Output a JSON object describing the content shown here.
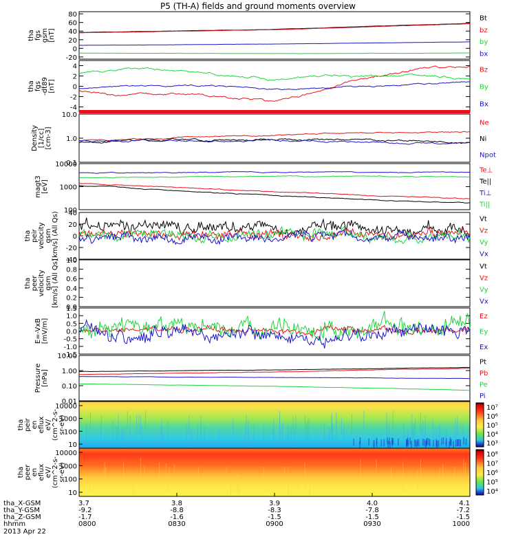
{
  "title": "P5 (TH-A) fields and ground moments overview",
  "date_label": "2013 Apr 22",
  "colors": {
    "black": "#000000",
    "red": "#e8101a",
    "green": "#1fd43c",
    "blue": "#1a14c8",
    "frame": "#000000"
  },
  "chart_data": [
    {
      "type": "line",
      "panel": "fgs",
      "ylabel": [
        "tha",
        "fgs",
        "gsm",
        "[nT]"
      ],
      "yticks": [
        "80",
        "60",
        "40",
        "20",
        "0",
        "-20"
      ],
      "ylim": [
        -25,
        85
      ],
      "legend": [
        "Bt",
        "bz",
        "by",
        "bx"
      ],
      "series": [
        {
          "name": "Bt",
          "color": "black",
          "x": [
            0,
            0.5,
            1
          ],
          "values": [
            37,
            44,
            58
          ]
        },
        {
          "name": "bz",
          "color": "red",
          "x": [
            0,
            0.5,
            1
          ],
          "values": [
            36,
            43,
            57
          ]
        },
        {
          "name": "by",
          "color": "blue",
          "x": [
            0,
            0.5,
            1
          ],
          "values": [
            7,
            10,
            15
          ]
        },
        {
          "name": "bx",
          "color": "green",
          "x": [
            0,
            0.5,
            1
          ],
          "values": [
            -11,
            -12,
            -11
          ]
        }
      ]
    },
    {
      "type": "line",
      "panel": "fgs_dt89",
      "ylabel": [
        "tha",
        "fgs",
        "-dt89",
        "[nT]"
      ],
      "yticks": [
        "4",
        "2",
        "0",
        "-2",
        "-4"
      ],
      "ylim": [
        -5,
        5
      ],
      "legend": [
        "Bz",
        "By",
        "Bx"
      ],
      "series": [
        {
          "name": "Bz",
          "color": "red",
          "x": [
            0,
            0.12,
            0.25,
            0.38,
            0.5,
            0.62,
            0.75,
            0.88,
            1
          ],
          "values": [
            -1,
            -2,
            -1.5,
            -2,
            -3,
            -1,
            2,
            3.5,
            4
          ]
        },
        {
          "name": "By",
          "color": "green",
          "x": [
            0,
            0.12,
            0.25,
            0.38,
            0.5,
            0.62,
            0.75,
            0.88,
            1
          ],
          "values": [
            2.5,
            3.5,
            3,
            2,
            1.5,
            2,
            2,
            2,
            1.5
          ]
        },
        {
          "name": "Bx",
          "color": "blue",
          "x": [
            0,
            0.12,
            0.25,
            0.38,
            0.5,
            0.62,
            0.75,
            0.88,
            1
          ],
          "values": [
            -0.5,
            0,
            0.2,
            0,
            -0.5,
            -0.3,
            0,
            0.5,
            1
          ]
        }
      ]
    },
    {
      "type": "line",
      "panel": "density",
      "log": true,
      "ylabel": [
        "Density",
        "[1/cc]",
        "[cm-3]"
      ],
      "yticks": [
        "10.0",
        "1.0",
        "0.1"
      ],
      "ylim": [
        0.1,
        10
      ],
      "legend": [
        "Ne",
        "Ni",
        "Npot"
      ],
      "series": [
        {
          "name": "Ne",
          "color": "red",
          "x": [
            0,
            0.5,
            1
          ],
          "values": [
            0.8,
            1.3,
            1.9
          ]
        },
        {
          "name": "Ni",
          "color": "black",
          "x": [
            0,
            0.5,
            1
          ],
          "values": [
            0.7,
            0.9,
            0.7
          ]
        },
        {
          "name": "Npot",
          "color": "blue",
          "x": [
            0,
            0.5,
            1
          ],
          "values": [
            0.8,
            0.8,
            0.6
          ]
        }
      ]
    },
    {
      "type": "line",
      "panel": "temperature",
      "log": true,
      "ylabel": [
        "magt3",
        "[eV]"
      ],
      "yticks": [
        "10000",
        "1000",
        "100"
      ],
      "ylim": [
        100,
        10000
      ],
      "legend": [
        "Te⊥",
        "Te||",
        "Ti⊥",
        "Ti||"
      ],
      "series": [
        {
          "name": "Ti⊥",
          "color": "blue",
          "x": [
            0,
            0.5,
            1
          ],
          "values": [
            4000,
            4300,
            4200
          ]
        },
        {
          "name": "Ti||",
          "color": "green",
          "x": [
            0,
            0.5,
            1
          ],
          "values": [
            2500,
            2800,
            2700
          ]
        },
        {
          "name": "Te⊥",
          "color": "red",
          "x": [
            0,
            0.25,
            0.5,
            0.75,
            1
          ],
          "values": [
            1400,
            900,
            600,
            400,
            300
          ]
        },
        {
          "name": "Te||",
          "color": "black",
          "x": [
            0,
            0.25,
            0.5,
            0.75,
            1
          ],
          "values": [
            1100,
            650,
            400,
            260,
            190
          ]
        }
      ]
    },
    {
      "type": "line",
      "panel": "peir_velocity",
      "ylabel": [
        "tha",
        "peir",
        "velocity",
        "gsm",
        "[km/s] (All Qs)"
      ],
      "yticks": [
        "40",
        "20",
        "0",
        "-20",
        "-40"
      ],
      "ylim": [
        -40,
        40
      ],
      "legend": [
        "Vt",
        "Vz",
        "Vy",
        "Vx"
      ],
      "series": [
        {
          "name": "Vt",
          "color": "black",
          "x": [
            0,
            1
          ],
          "values": [
            15,
            15
          ]
        },
        {
          "name": "Vz",
          "color": "red",
          "x": [
            0,
            1
          ],
          "values": [
            2,
            2
          ]
        },
        {
          "name": "Vy",
          "color": "green",
          "x": [
            0,
            1
          ],
          "values": [
            0,
            0
          ]
        },
        {
          "name": "Vx",
          "color": "blue",
          "x": [
            0,
            1
          ],
          "values": [
            -3,
            -3
          ]
        }
      ]
    },
    {
      "type": "line",
      "panel": "peer_velocity",
      "ylabel": [
        "tha",
        "peer",
        "velocity",
        "gsm",
        "[km/s] (All Qs)"
      ],
      "yticks": [
        "1.0",
        "0.8",
        "0.6",
        "0.4",
        "0.2",
        "0.0"
      ],
      "ylim": [
        0,
        1
      ],
      "legend": [
        "Vt",
        "Vz",
        "Vy",
        "Vx"
      ],
      "series": []
    },
    {
      "type": "line",
      "panel": "efield",
      "ylabel": [
        "E=-VxB",
        "[mV/m]"
      ],
      "yticks": [
        "1.5",
        "1.0",
        "0.5",
        "0.0",
        "-0.5",
        "-1.0",
        "-1.5"
      ],
      "ylim": [
        -1.5,
        1.5
      ],
      "legend": [
        "Ez",
        "Ey",
        "Ex"
      ],
      "series": [
        {
          "name": "Ez",
          "color": "red",
          "x": [
            0,
            1
          ],
          "values": [
            0.05,
            0.05
          ]
        },
        {
          "name": "Ey",
          "color": "green",
          "x": [
            0,
            1
          ],
          "values": [
            0.2,
            0.2
          ]
        },
        {
          "name": "Ex",
          "color": "blue",
          "x": [
            0,
            1
          ],
          "values": [
            -0.1,
            -0.1
          ]
        }
      ]
    },
    {
      "type": "line",
      "panel": "pressure",
      "log": true,
      "ylabel": [
        "Pressure",
        "[nPa]"
      ],
      "yticks": [
        "10.00",
        "1.00",
        "0.10",
        "0.01"
      ],
      "ylim": [
        0.01,
        10
      ],
      "legend": [
        "Pt",
        "Pb",
        "Pe",
        "Pi"
      ],
      "series": [
        {
          "name": "Pt",
          "color": "black",
          "x": [
            0,
            0.5,
            1
          ],
          "values": [
            0.85,
            1.1,
            1.6
          ]
        },
        {
          "name": "Pb",
          "color": "red",
          "x": [
            0,
            0.5,
            1
          ],
          "values": [
            0.55,
            0.8,
            1.4
          ]
        },
        {
          "name": "Pi",
          "color": "blue",
          "x": [
            0,
            0.5,
            1
          ],
          "values": [
            0.4,
            0.35,
            0.3
          ]
        },
        {
          "name": "Pe",
          "color": "green",
          "x": [
            0,
            0.5,
            1
          ],
          "values": [
            0.13,
            0.09,
            0.05
          ]
        }
      ]
    },
    {
      "type": "heatmap",
      "panel": "peir_efflux",
      "ylabel": [
        "tha",
        "peir",
        "en",
        "eflux",
        "eV/",
        "(cm^2-s-",
        "sr-eV)"
      ],
      "yticks": [
        "10000",
        "1000",
        "100",
        "10"
      ],
      "colorbar_ticks": [
        "10⁷",
        "10⁶",
        "10⁵",
        "10⁴",
        "10³"
      ]
    },
    {
      "type": "heatmap",
      "panel": "peer_efflux",
      "ylabel": [
        "tha",
        "peer",
        "en",
        "eflux",
        "eV/",
        "(cm^2-s-",
        "sr-eV)"
      ],
      "yticks": [
        "10000",
        "1000",
        "100",
        "10"
      ],
      "colorbar_ticks": [
        "10⁸",
        "10⁷",
        "10⁶",
        "10⁵",
        "10⁴"
      ]
    }
  ],
  "x_axis": {
    "rows": [
      {
        "label": "tha_X-GSM",
        "values": [
          "3.7",
          "3.8",
          "3.9",
          "4.0",
          "4.1"
        ]
      },
      {
        "label": "tha_Y-GSM",
        "values": [
          "-9.2",
          "-8.8",
          "-8.3",
          "-7.8",
          "-7.2"
        ]
      },
      {
        "label": "tha_Z-GSM",
        "values": [
          "-1.7",
          "-1.6",
          "-1.5",
          "-1.5",
          "-1.5"
        ]
      },
      {
        "label": "hhmm",
        "values": [
          "0800",
          "0830",
          "0900",
          "0930",
          "1000"
        ]
      }
    ]
  }
}
